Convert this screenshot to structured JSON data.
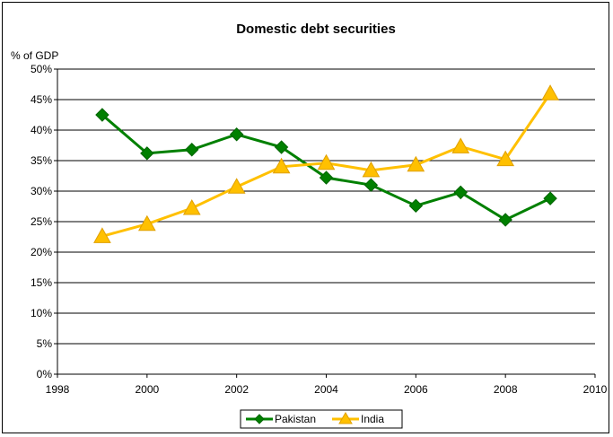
{
  "chart_data": {
    "type": "line",
    "title": "Domestic debt securities",
    "ylabel": "% of GDP",
    "xlabel": "",
    "xlim": [
      1998,
      2010
    ],
    "ylim": [
      0,
      50
    ],
    "x_ticks": [
      "1998",
      "2000",
      "2002",
      "2004",
      "2006",
      "2008",
      "2010"
    ],
    "y_ticks": [
      "0%",
      "5%",
      "10%",
      "15%",
      "20%",
      "25%",
      "30%",
      "35%",
      "40%",
      "45%",
      "50%"
    ],
    "grid": true,
    "legend": "bottom",
    "series": [
      {
        "name": "Pakistan",
        "color": "#008000",
        "marker": "diamond",
        "x": [
          1999,
          2000,
          2001,
          2002,
          2003,
          2004,
          2005,
          2006,
          2007,
          2008,
          2009
        ],
        "values": [
          42.5,
          36.2,
          36.8,
          39.3,
          37.2,
          32.2,
          31.0,
          27.6,
          29.8,
          25.3,
          28.8
        ]
      },
      {
        "name": "India",
        "color": "#FFC000",
        "marker": "triangle",
        "x": [
          1999,
          2000,
          2001,
          2002,
          2003,
          2004,
          2005,
          2006,
          2007,
          2008,
          2009
        ],
        "values": [
          22.6,
          24.6,
          27.2,
          30.7,
          34.0,
          34.6,
          33.4,
          34.3,
          37.3,
          35.2,
          46.0
        ]
      }
    ]
  }
}
